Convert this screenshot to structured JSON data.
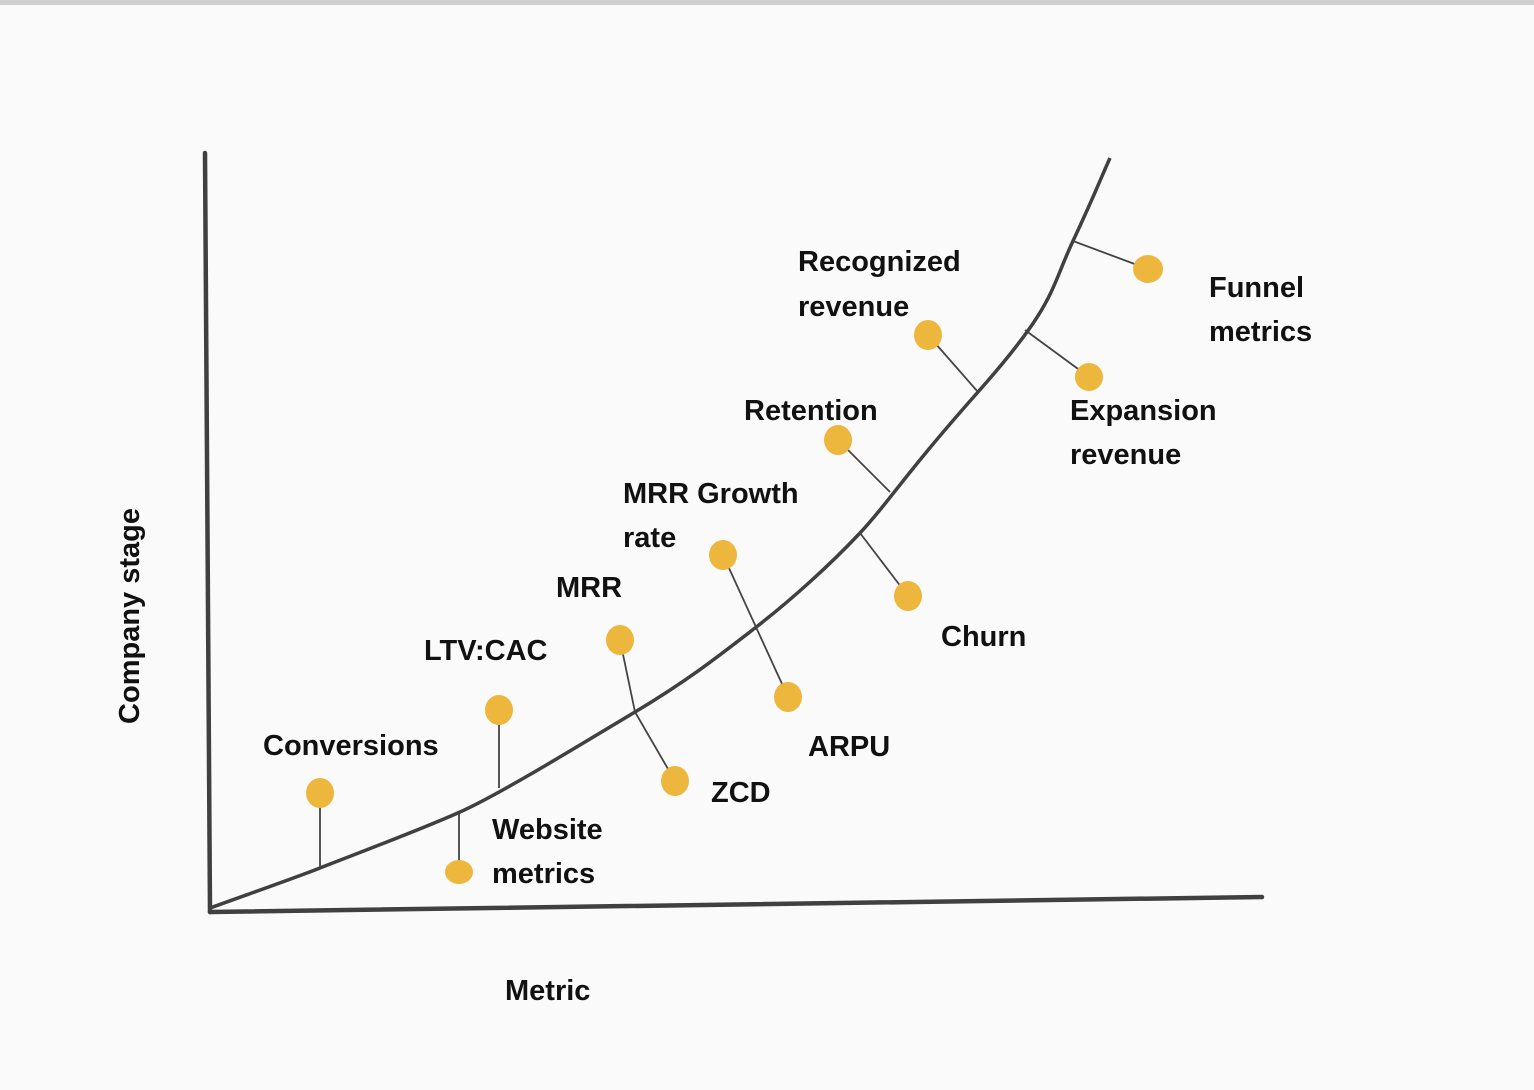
{
  "axes": {
    "y_label": "Company stage",
    "x_label": "Metric"
  },
  "dot_color": "#ECB73C",
  "line_color": "#404040",
  "labels": {
    "conversions": "Conversions",
    "ltv_cac": "LTV:CAC",
    "website_1": "Website",
    "website_2": "metrics",
    "mrr": "MRR",
    "zcd": "ZCD",
    "mrr_growth_1": "MRR Growth",
    "mrr_growth_2": "rate",
    "arpu": "ARPU",
    "retention": "Retention",
    "churn": "Churn",
    "recognized_1": "Recognized",
    "recognized_2": "revenue",
    "expansion_1": "Expansion",
    "expansion_2": "revenue",
    "funnel_1": "Funnel",
    "funnel_2": "metrics"
  }
}
